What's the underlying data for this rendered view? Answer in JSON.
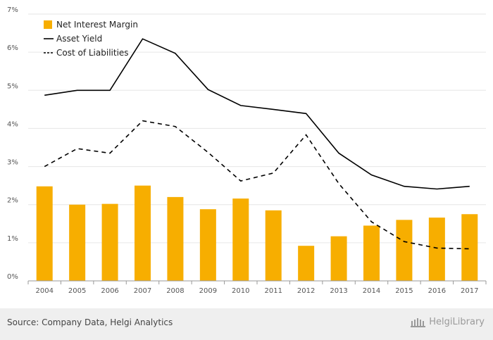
{
  "chart_data": {
    "type": "bar",
    "categories": [
      "2004",
      "2005",
      "2006",
      "2007",
      "2008",
      "2009",
      "2010",
      "2011",
      "2012",
      "2013",
      "2014",
      "2015",
      "2016",
      "2017"
    ],
    "series": [
      {
        "name": "Net Interest Margin",
        "kind": "bar",
        "color": "#F7AE00",
        "values": [
          2.48,
          2.0,
          2.02,
          2.5,
          2.2,
          1.88,
          2.16,
          1.85,
          0.92,
          1.17,
          1.45,
          1.6,
          1.66,
          1.75
        ]
      },
      {
        "name": "Asset Yield",
        "kind": "line",
        "style": "solid",
        "color": "#000000",
        "values": [
          4.87,
          5.0,
          5.0,
          6.35,
          5.97,
          5.02,
          4.6,
          4.5,
          4.39,
          3.35,
          2.78,
          2.48,
          2.41,
          2.48
        ]
      },
      {
        "name": "Cost of Liabilities",
        "kind": "line",
        "style": "dashed",
        "color": "#000000",
        "values": [
          3.0,
          3.47,
          3.35,
          4.2,
          4.05,
          3.37,
          2.62,
          2.83,
          3.83,
          2.55,
          1.55,
          1.03,
          0.86,
          0.84
        ]
      }
    ],
    "ylim": [
      0,
      7
    ],
    "yticks": [
      "0%",
      "1%",
      "2%",
      "3%",
      "4%",
      "5%",
      "6%",
      "7%"
    ],
    "grid": true,
    "legend_position": "top-left"
  },
  "footer": {
    "source": "Source: Company Data, Helgi Analytics",
    "brand": "HelgiLibrary"
  }
}
